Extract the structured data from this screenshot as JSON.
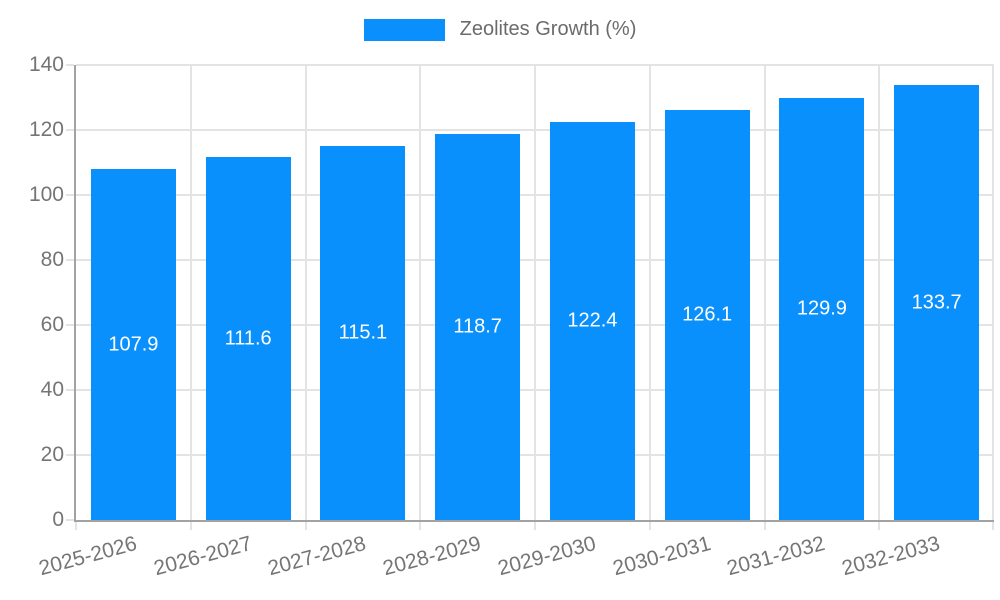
{
  "chart_data": {
    "type": "bar",
    "title": "Zeolites Growth (%)",
    "legend_entries": [
      "Zeolites Growth (%)"
    ],
    "legend_position": "top",
    "categories": [
      "2025-2026",
      "2026-2027",
      "2027-2028",
      "2028-2029",
      "2029-2030",
      "2030-2031",
      "2031-2032",
      "2032-2033"
    ],
    "values": [
      107.9,
      111.6,
      115.1,
      118.7,
      122.4,
      126.1,
      129.9,
      133.7
    ],
    "bar_value_labels": [
      "107.9",
      "111.6",
      "115.1",
      "118.7",
      "122.4",
      "126.1",
      "129.9",
      "133.7"
    ],
    "xlabel": "",
    "ylabel": "",
    "ylim": [
      0,
      140
    ],
    "yticks": [
      0,
      20,
      40,
      60,
      80,
      100,
      120,
      140
    ],
    "grid": true,
    "colors": {
      "bar": "#0a90fc",
      "bar_label": "#ffffff",
      "grid": "#e3e3e3",
      "axis": "#a2a2a2",
      "tick_text": "#757575",
      "legend_text": "#6b6b6b"
    }
  }
}
